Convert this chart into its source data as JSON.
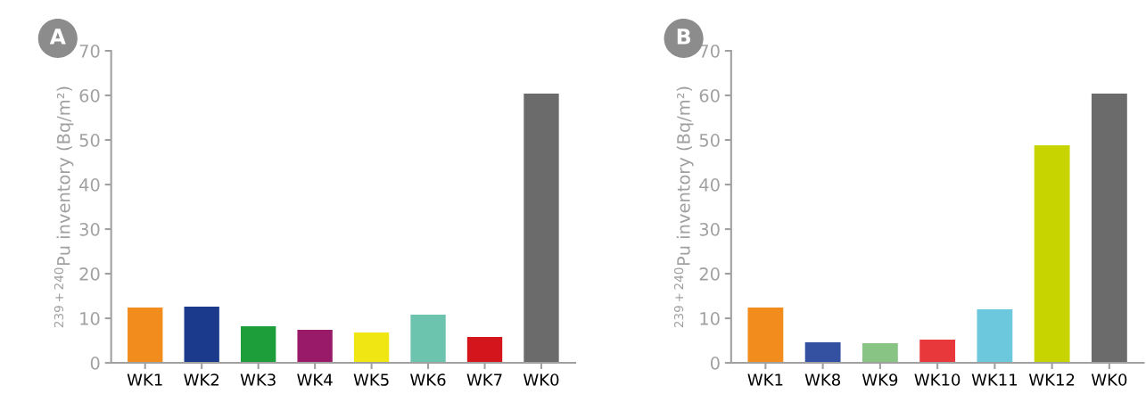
{
  "chart_data": [
    {
      "type": "bar",
      "title": "A",
      "ylabel": "$^{239+240}$Pu inventory (Bq/m²)",
      "categories": [
        "WK1",
        "WK2",
        "WK3",
        "WK4",
        "WK5",
        "WK6",
        "WK7",
        "WK0"
      ],
      "values": [
        12.4,
        12.6,
        8.2,
        7.4,
        6.8,
        10.8,
        5.8,
        60.4
      ],
      "colors": [
        "#f28c1c",
        "#1c3a8c",
        "#1e9e3a",
        "#9a1a6a",
        "#f0e614",
        "#6cc4ae",
        "#d4161c",
        "#6b6b6b"
      ],
      "ylim": [
        0,
        70
      ],
      "yticks": [
        0,
        10,
        20,
        30,
        40,
        50,
        60,
        70
      ],
      "grid": false,
      "legend": false
    },
    {
      "type": "bar",
      "title": "B",
      "ylabel": "$^{239+240}$Pu inventory (Bq/m²)",
      "categories": [
        "WK1",
        "WK8",
        "WK9",
        "WK10",
        "WK11",
        "WK12",
        "WK0"
      ],
      "values": [
        12.4,
        4.6,
        4.4,
        5.2,
        12.0,
        48.8,
        60.4
      ],
      "colors": [
        "#f28c1c",
        "#3450a0",
        "#88c484",
        "#e8383c",
        "#6cc8dc",
        "#c8d400",
        "#6b6b6b"
      ],
      "ylim": [
        0,
        70
      ],
      "yticks": [
        0,
        10,
        20,
        30,
        40,
        50,
        60,
        70
      ],
      "grid": false,
      "legend": false
    }
  ]
}
